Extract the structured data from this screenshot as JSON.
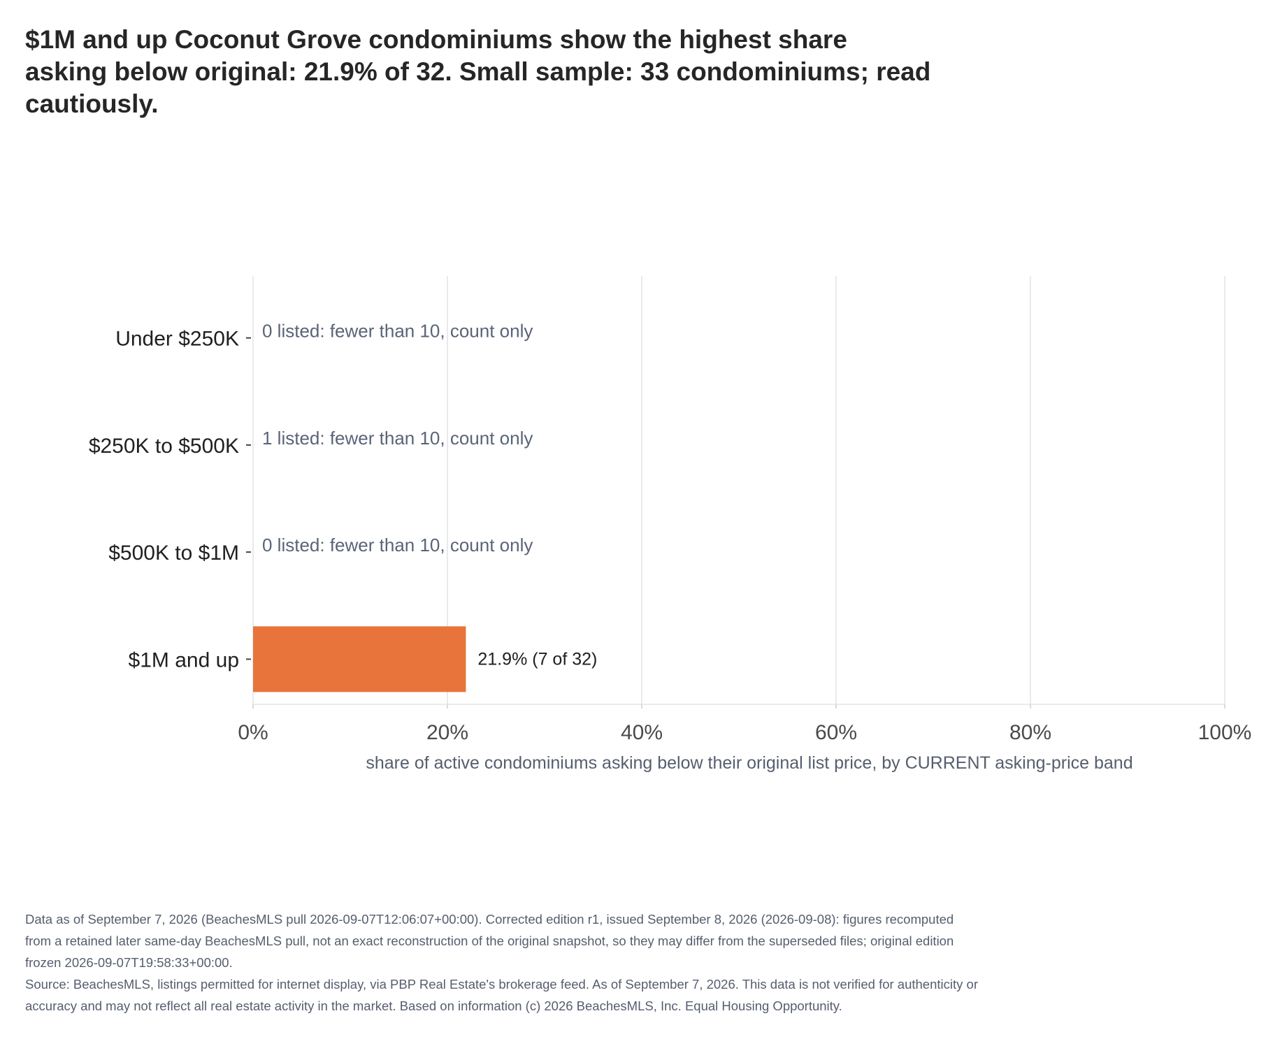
{
  "chart_data": {
    "type": "bar",
    "orientation": "horizontal",
    "title": "$1M and up Coconut Grove condominiums show the highest share asking below original: 21.9% of 32. Small sample: 33 condominiums; read cautiously.",
    "xlabel": "share of active condominiums asking below their original list price, by CURRENT asking-price band",
    "ylabel": "",
    "xlim": [
      0,
      100
    ],
    "x_ticks": [
      "0%",
      "20%",
      "40%",
      "60%",
      "80%",
      "100%"
    ],
    "x_tick_values": [
      0,
      20,
      40,
      60,
      80,
      100
    ],
    "grid": true,
    "categories": [
      "Under $250K",
      "$250K to $500K",
      "$500K to $1M",
      "$1M and up"
    ],
    "values": [
      null,
      null,
      null,
      21.9
    ],
    "labels": [
      "0 listed: fewer than 10, count only",
      "1 listed: fewer than 10, count only",
      "0 listed: fewer than 10, count only",
      "21.9%  (7 of 32)"
    ],
    "bar_color": "#e8743b",
    "grid_color": "#e3e3e8",
    "note_color": "#5a6478"
  },
  "footer": {
    "note": "Data as of September 7, 2026 (BeachesMLS pull 2026-09-07T12:06:07+00:00). Corrected edition r1, issued September 8, 2026 (2026-09-08): figures recomputed from a retained later same-day BeachesMLS pull, not an exact reconstruction of the original snapshot, so they may differ from the superseded files; original edition frozen 2026-09-07T19:58:33+00:00.",
    "source": "Source: BeachesMLS, listings permitted for internet display, via PBP Real Estate's brokerage feed. As of September 7, 2026. This data is not verified for authenticity or accuracy and may not reflect all real estate activity in the market. Based on information (c) 2026 BeachesMLS, Inc. Equal Housing Opportunity."
  }
}
